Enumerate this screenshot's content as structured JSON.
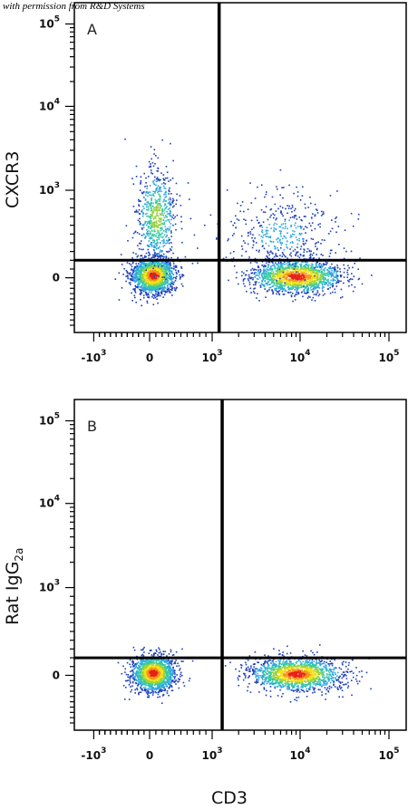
{
  "watermark": "with permission from R&D Systems",
  "chart_data": [
    {
      "type": "scatter",
      "panel_label": "A",
      "xlabel": "CD3",
      "ylabel": "CXCR3",
      "ylabel_subscript": "",
      "x_scale": "biexponential",
      "y_scale": "biexponential",
      "x_tick_labels": [
        {
          "base": "-10",
          "exp": "3"
        },
        {
          "base": "0",
          "exp": ""
        },
        {
          "base": "10",
          "exp": "3"
        },
        {
          "base": "10",
          "exp": "4"
        },
        {
          "base": "10",
          "exp": "5"
        }
      ],
      "y_tick_labels": [
        {
          "base": "10",
          "exp": "5"
        },
        {
          "base": "10",
          "exp": "4"
        },
        {
          "base": "10",
          "exp": "3"
        },
        {
          "base": "0",
          "exp": ""
        }
      ],
      "quadrant_gate": {
        "x": 1200,
        "y": 200
      },
      "populations": [
        {
          "name": "CD3-negative",
          "x_center": 50,
          "y_center": 30,
          "density": "high"
        },
        {
          "name": "CD3-negative CXCR3+ tail",
          "x_center": 100,
          "y_center": 700,
          "density": "medium"
        },
        {
          "name": "CD3-positive",
          "x_center": 9000,
          "y_center": 20,
          "density": "high"
        },
        {
          "name": "CD3-positive CXCR3+",
          "x_center": 6000,
          "y_center": 500,
          "density": "low"
        }
      ],
      "colormap": [
        "#1d3fb8",
        "#2fa7e0",
        "#35c9a6",
        "#9bd33c",
        "#f2e21b",
        "#f5951b",
        "#e8201a"
      ]
    },
    {
      "type": "scatter",
      "panel_label": "B",
      "xlabel": "CD3",
      "ylabel": "Rat IgG",
      "ylabel_subscript": "2a",
      "x_scale": "biexponential",
      "y_scale": "biexponential",
      "x_tick_labels": [
        {
          "base": "-10",
          "exp": "3"
        },
        {
          "base": "0",
          "exp": ""
        },
        {
          "base": "10",
          "exp": "3"
        },
        {
          "base": "10",
          "exp": "4"
        },
        {
          "base": "10",
          "exp": "5"
        }
      ],
      "y_tick_labels": [
        {
          "base": "10",
          "exp": "5"
        },
        {
          "base": "10",
          "exp": "4"
        },
        {
          "base": "10",
          "exp": "3"
        },
        {
          "base": "0",
          "exp": ""
        }
      ],
      "quadrant_gate": {
        "x": 1300,
        "y": 200
      },
      "populations": [
        {
          "name": "CD3-negative",
          "x_center": 50,
          "y_center": 30,
          "density": "high"
        },
        {
          "name": "CD3-positive",
          "x_center": 9000,
          "y_center": 20,
          "density": "high"
        }
      ],
      "colormap": [
        "#1d3fb8",
        "#2fa7e0",
        "#35c9a6",
        "#9bd33c",
        "#f2e21b",
        "#f5951b",
        "#e8201a"
      ]
    }
  ]
}
